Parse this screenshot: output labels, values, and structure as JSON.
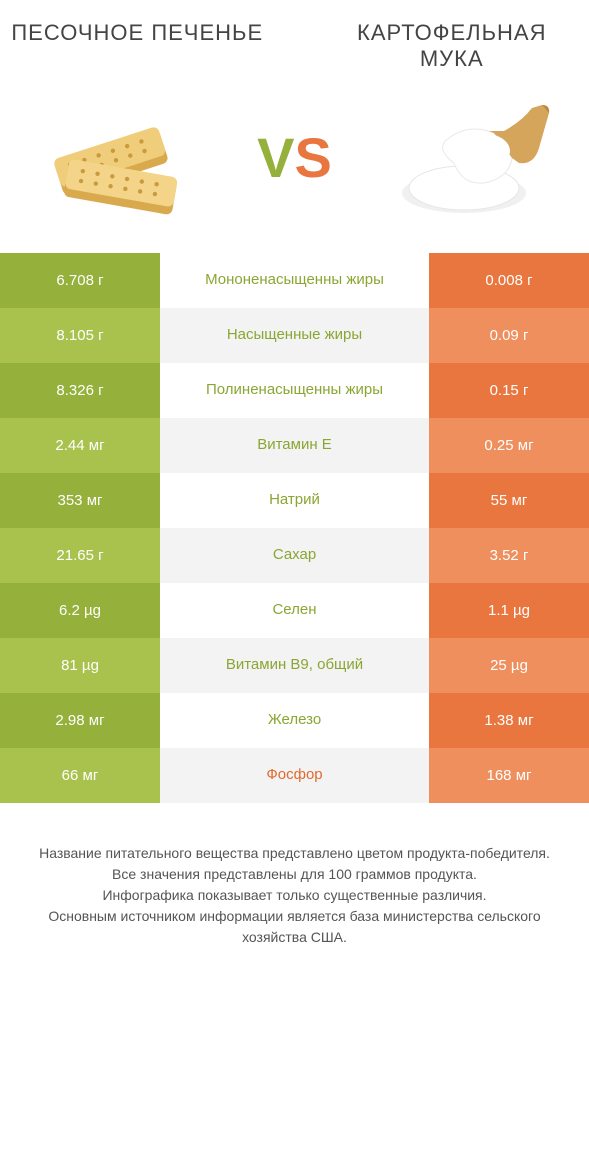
{
  "titles": {
    "left": "ПЕСОЧНОЕ ПЕЧЕНЬЕ",
    "right": "КАРТОФЕЛЬНАЯ МУКА"
  },
  "vs": {
    "v": "V",
    "s": "S"
  },
  "colors": {
    "green_dark": "#95b03b",
    "green_light": "#a8c24d",
    "orange_dark": "#e8763e",
    "orange_light": "#ee8f5d",
    "mid_bg_a": "#ffffff",
    "mid_bg_b": "#f3f3f3",
    "mid_text_green": "#8aa632",
    "mid_text_orange": "#e06a30",
    "footer_text": "#555555"
  },
  "rows": [
    {
      "left": "6.708 г",
      "mid": "Мононенасыщенны жиры",
      "right": "0.008 г",
      "winner": "left"
    },
    {
      "left": "8.105 г",
      "mid": "Насыщенные жиры",
      "right": "0.09 г",
      "winner": "left"
    },
    {
      "left": "8.326 г",
      "mid": "Полиненасыщенны жиры",
      "right": "0.15 г",
      "winner": "left"
    },
    {
      "left": "2.44 мг",
      "mid": "Витамин E",
      "right": "0.25 мг",
      "winner": "left"
    },
    {
      "left": "353 мг",
      "mid": "Натрий",
      "right": "55 мг",
      "winner": "left"
    },
    {
      "left": "21.65 г",
      "mid": "Сахар",
      "right": "3.52 г",
      "winner": "left"
    },
    {
      "left": "6.2 µg",
      "mid": "Селен",
      "right": "1.1 µg",
      "winner": "left"
    },
    {
      "left": "81 µg",
      "mid": "Витамин B9, общий",
      "right": "25 µg",
      "winner": "left"
    },
    {
      "left": "2.98 мг",
      "mid": "Железо",
      "right": "1.38 мг",
      "winner": "left"
    },
    {
      "left": "66 мг",
      "mid": "Фосфор",
      "right": "168 мг",
      "winner": "right"
    }
  ],
  "footer": [
    "Название питательного вещества представлено цветом продукта-победителя.",
    "Все значения представлены для 100 граммов продукта.",
    "Инфографика показывает только существенные различия.",
    "Основным источником информации является база министерства сельского хозяйства США."
  ]
}
